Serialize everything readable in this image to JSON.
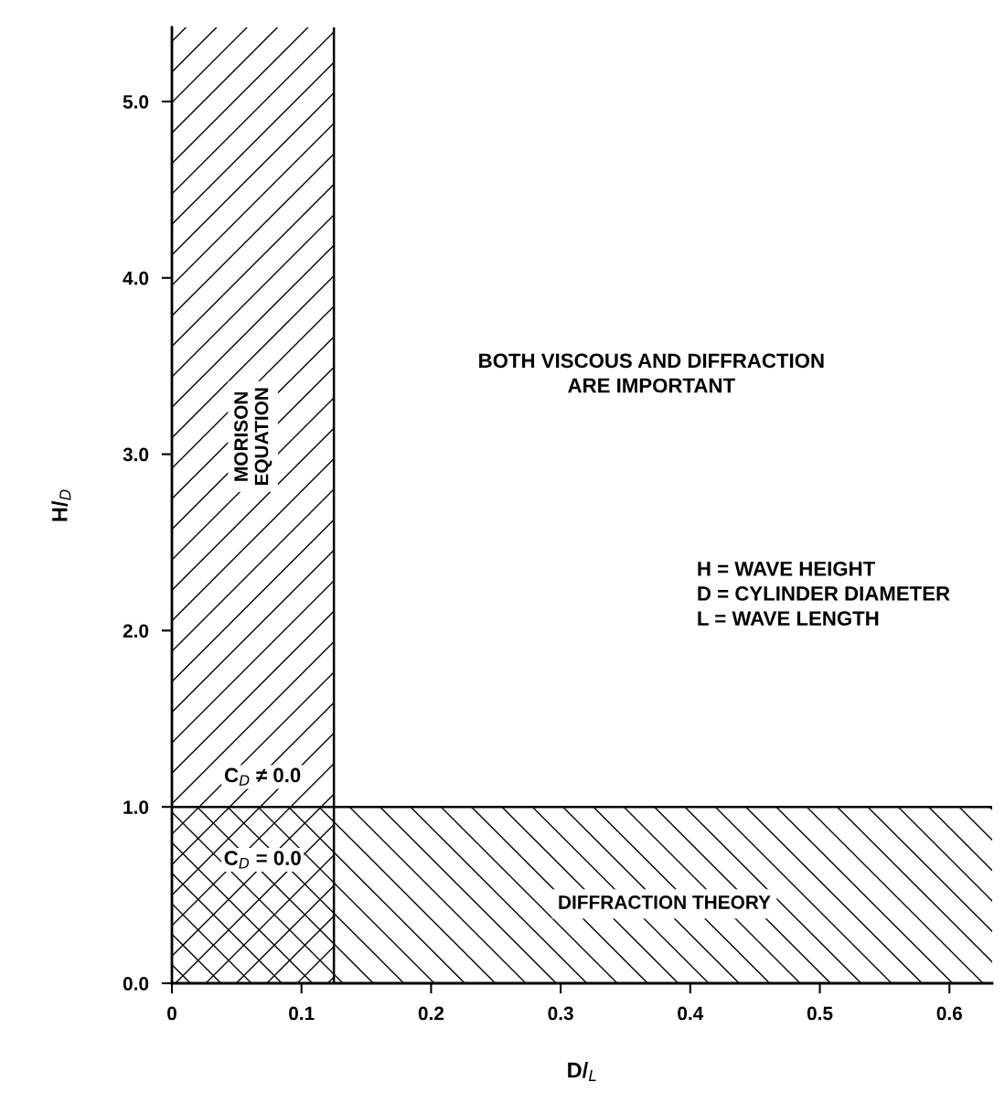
{
  "chart_data": {
    "type": "line",
    "xlabel": "D/$_{L}$",
    "ylabel": "H/$_{D}$",
    "xlim": [
      0,
      0.633
    ],
    "ylim": [
      0,
      5.42
    ],
    "xticks": [
      0,
      0.1,
      0.2,
      0.3,
      0.4,
      0.5,
      0.6
    ],
    "yticks": [
      {
        "value": 0,
        "label": "0.0"
      },
      {
        "value": 1,
        "label": "1.0"
      },
      {
        "value": 2,
        "label": "2.0"
      },
      {
        "value": 3,
        "label": "3.0"
      },
      {
        "value": 4,
        "label": "4.0"
      },
      {
        "value": 5,
        "label": "5.0"
      }
    ],
    "bands": [
      {
        "axis": "x",
        "from": 0,
        "to": 0.125,
        "label": "MORISON\nEQUATION"
      },
      {
        "axis": "y",
        "from": 0,
        "to": 1,
        "label": "DIFFRACTION THEORY"
      }
    ],
    "ref_lines": [
      {
        "axis": "x",
        "value": 0.125
      },
      {
        "axis": "y",
        "value": 1
      }
    ],
    "annotations": [
      "BOTH VISCOUS AND DIFFRACTION\nARE IMPORTANT",
      "H = WAVE HEIGHT\nD = CYLINDER DIAMETER\nL = WAVE LENGTH",
      "C$_{D}$ ≠ 0.0",
      "C$_{D}$ = 0.0"
    ]
  }
}
